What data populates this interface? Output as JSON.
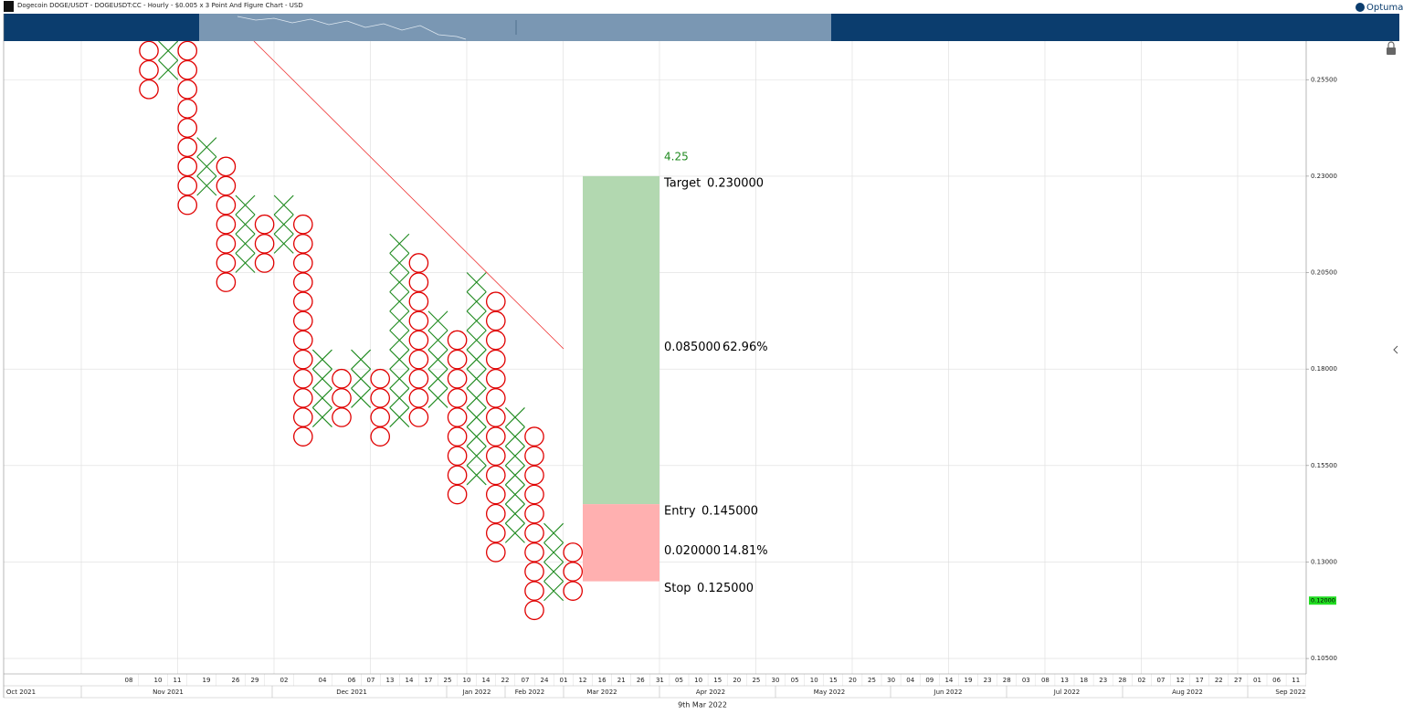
{
  "chart_data": {
    "type": "pnf",
    "title": "Dogecoin DOGE/USDT - DOGEUSDT:CC - Hourly - $0.005 x 3 Point And Figure Chart - USD",
    "brand": "Optuma",
    "box_size": 0.005,
    "ylim": [
      0.101,
      0.265
    ],
    "yticks": [
      {
        "value": 0.105,
        "label": "0.10500"
      },
      {
        "value": 0.13,
        "label": "0.13000"
      },
      {
        "value": 0.155,
        "label": "0.15500"
      },
      {
        "value": 0.18,
        "label": "0.18000"
      },
      {
        "value": 0.205,
        "label": "0.20500"
      },
      {
        "value": 0.23,
        "label": "0.23000"
      },
      {
        "value": 0.255,
        "label": "0.25500"
      }
    ],
    "grid": true,
    "x_color": "#1f8a1f",
    "o_color": "#e00000",
    "columns": [
      {
        "kind": "O",
        "high": 0.265,
        "low": 0.25
      },
      {
        "kind": "X",
        "high": 0.265,
        "low": 0.255
      },
      {
        "kind": "O",
        "high": 0.265,
        "low": 0.22
      },
      {
        "kind": "X",
        "high": 0.24,
        "low": 0.225
      },
      {
        "kind": "O",
        "high": 0.235,
        "low": 0.2
      },
      {
        "kind": "X",
        "high": 0.225,
        "low": 0.205
      },
      {
        "kind": "O",
        "high": 0.22,
        "low": 0.205
      },
      {
        "kind": "X",
        "high": 0.225,
        "low": 0.21
      },
      {
        "kind": "O",
        "high": 0.22,
        "low": 0.16
      },
      {
        "kind": "X",
        "high": 0.185,
        "low": 0.165
      },
      {
        "kind": "O",
        "high": 0.18,
        "low": 0.165
      },
      {
        "kind": "X",
        "high": 0.185,
        "low": 0.17
      },
      {
        "kind": "O",
        "high": 0.18,
        "low": 0.16
      },
      {
        "kind": "X",
        "high": 0.215,
        "low": 0.165
      },
      {
        "kind": "O",
        "high": 0.21,
        "low": 0.165
      },
      {
        "kind": "X",
        "high": 0.195,
        "low": 0.17
      },
      {
        "kind": "O",
        "high": 0.19,
        "low": 0.145
      },
      {
        "kind": "X",
        "high": 0.205,
        "low": 0.15
      },
      {
        "kind": "O",
        "high": 0.2,
        "low": 0.13
      },
      {
        "kind": "X",
        "high": 0.17,
        "low": 0.135
      },
      {
        "kind": "O",
        "high": 0.165,
        "low": 0.115
      },
      {
        "kind": "X",
        "high": 0.14,
        "low": 0.12
      },
      {
        "kind": "O",
        "high": 0.135,
        "low": 0.12
      }
    ],
    "days": [
      "08",
      "10",
      "11",
      "19",
      "26",
      "29",
      "02",
      "04",
      "06",
      "07",
      "13",
      "14",
      "17",
      "25",
      "10",
      "14",
      "22",
      "07",
      "24",
      "01",
      "12",
      "16",
      "21",
      "26",
      "31",
      "05",
      "10",
      "15",
      "20",
      "25",
      "30",
      "05",
      "10",
      "15",
      "20",
      "25",
      "30",
      "04",
      "09",
      "14",
      "19",
      "23",
      "28",
      "03",
      "08",
      "13",
      "18",
      "23",
      "28",
      "02",
      "07",
      "12",
      "17",
      "22",
      "27",
      "01",
      "06",
      "11"
    ],
    "months": [
      "Oct 2021",
      "Nov 2021",
      "Dec 2021",
      "Jan 2022",
      "Feb 2022",
      "Mar 2022",
      "Apr 2022",
      "May 2022",
      "Jun 2022",
      "Jul 2022",
      "Aug 2022",
      "Sep 2022"
    ],
    "crosshair_date": "9th Mar 2022",
    "last_price": {
      "value": 0.12,
      "label": "0.12000",
      "color": "#22dd22"
    },
    "trade": {
      "ratio": 4.25,
      "target": {
        "label": "Target",
        "value": 0.23,
        "value_label": "0.230000"
      },
      "reward": {
        "amount": "0.085000",
        "percent": "62.96%"
      },
      "entry": {
        "label": "Entry",
        "value": 0.145,
        "value_label": "0.145000"
      },
      "risk": {
        "amount": "0.020000",
        "percent": "14.81%"
      },
      "stop": {
        "label": "Stop",
        "value": 0.125,
        "value_label": "0.125000"
      }
    }
  }
}
